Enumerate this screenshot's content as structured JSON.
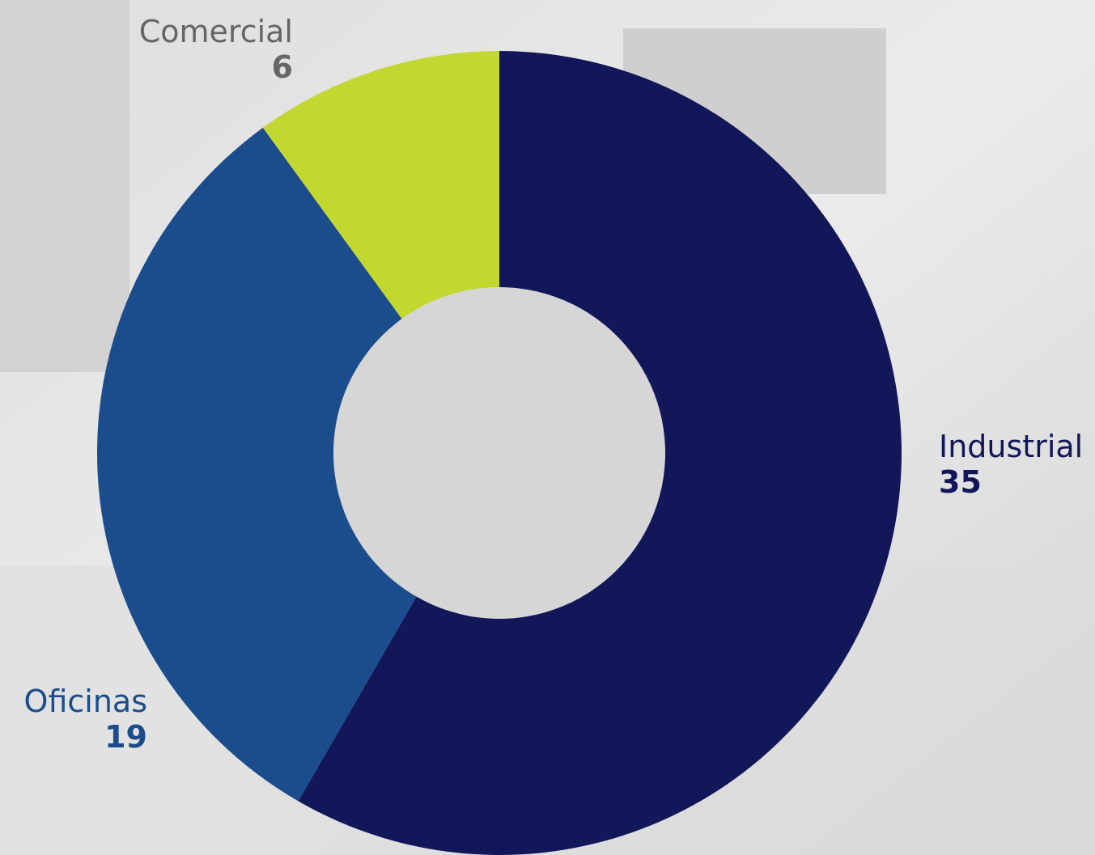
{
  "chart_data": {
    "type": "donut",
    "categories": [
      "Industrial",
      "Oficinas",
      "Comercial"
    ],
    "values": [
      35,
      19,
      6
    ],
    "colors": [
      "#12175a",
      "#1b4d8c",
      "#c2d72f"
    ]
  }
}
